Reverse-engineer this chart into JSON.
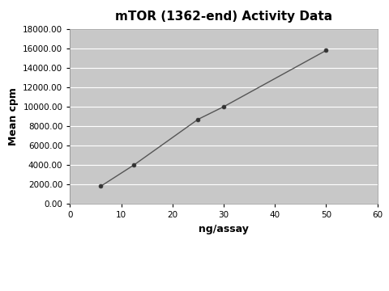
{
  "title": "mTOR (1362-end) Activity Data",
  "xlabel": "ng/assay",
  "ylabel": "Mean cpm",
  "x_data": [
    6,
    12.5,
    25,
    30,
    50
  ],
  "y_data": [
    1800,
    4000,
    8700,
    10000,
    15800
  ],
  "xlim": [
    0,
    60
  ],
  "ylim": [
    0,
    18000
  ],
  "xticks": [
    0,
    10,
    20,
    30,
    40,
    50,
    60
  ],
  "yticks": [
    0,
    2000,
    4000,
    6000,
    8000,
    10000,
    12000,
    14000,
    16000,
    18000
  ],
  "bg_color": "#c8c8c8",
  "fig_color": "#ffffff",
  "line_color": "#555555",
  "marker_color": "#333333",
  "title_fontsize": 11,
  "axis_label_fontsize": 9,
  "tick_label_fontsize": 7.5
}
